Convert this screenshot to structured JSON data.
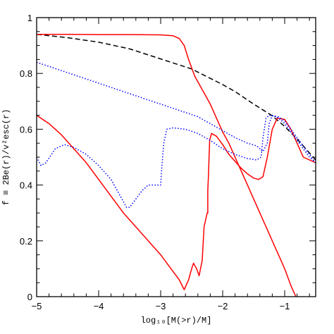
{
  "chart_data": {
    "type": "line",
    "title": "",
    "xlabel": "log₁₀[M(>r)/M]",
    "ylabel": "f ≡ 2Be(r)/v²esc(r)",
    "xlim": [
      -5,
      -0.5
    ],
    "ylim": [
      0,
      1
    ],
    "grid": false,
    "legend": "none",
    "x_ticks_major": [
      -5,
      -4,
      -3,
      -2,
      -1
    ],
    "x_tick_labels": [
      "−5",
      "−4",
      "−3",
      "−2",
      "−1"
    ],
    "y_ticks_major": [
      0,
      0.2,
      0.4,
      0.6,
      0.8,
      1
    ],
    "y_tick_labels": [
      "0",
      "0.2",
      "0.4",
      "0.6",
      "0.8",
      "1"
    ],
    "series": [
      {
        "style": "dashed",
        "color": "#000000",
        "points": [
          [
            -5,
            0.94
          ],
          [
            -4.5,
            0.928
          ],
          [
            -4,
            0.912
          ],
          [
            -3.5,
            0.888
          ],
          [
            -3,
            0.852
          ],
          [
            -2.5,
            0.816
          ],
          [
            -2,
            0.76
          ],
          [
            -1.8,
            0.735
          ],
          [
            -1.5,
            0.69
          ],
          [
            -1.2,
            0.648
          ],
          [
            -1,
            0.61
          ],
          [
            -0.8,
            0.565
          ],
          [
            -0.6,
            0.515
          ],
          [
            -0.5,
            0.49
          ]
        ]
      },
      {
        "style": "solid",
        "color": "#ff0000",
        "points": [
          [
            -5,
            0.94
          ],
          [
            -4.5,
            0.94
          ],
          [
            -4,
            0.939
          ],
          [
            -3.5,
            0.939
          ],
          [
            -3,
            0.938
          ],
          [
            -2.8,
            0.935
          ],
          [
            -2.7,
            0.925
          ],
          [
            -2.62,
            0.9
          ],
          [
            -2.55,
            0.85
          ],
          [
            -2.45,
            0.79
          ],
          [
            -2.3,
            0.73
          ],
          [
            -2.2,
            0.69
          ],
          [
            -2.1,
            0.64
          ],
          [
            -2,
            0.59
          ],
          [
            -1.9,
            0.55
          ],
          [
            -1.8,
            0.5
          ],
          [
            -1.7,
            0.45
          ],
          [
            -1.6,
            0.4
          ],
          [
            -1.5,
            0.35
          ],
          [
            -1.4,
            0.3
          ],
          [
            -1.3,
            0.25
          ],
          [
            -1.2,
            0.2
          ],
          [
            -1.1,
            0.15
          ],
          [
            -1,
            0.1
          ],
          [
            -0.9,
            0.04
          ],
          [
            -0.82,
            0
          ]
        ]
      },
      {
        "style": "solid",
        "color": "#ff0000",
        "points": [
          [
            -5,
            0.65
          ],
          [
            -4.8,
            0.62
          ],
          [
            -4.6,
            0.58
          ],
          [
            -4.4,
            0.53
          ],
          [
            -4.2,
            0.48
          ],
          [
            -4,
            0.42
          ],
          [
            -3.8,
            0.36
          ],
          [
            -3.6,
            0.3
          ],
          [
            -3.4,
            0.25
          ],
          [
            -3.2,
            0.2
          ],
          [
            -3,
            0.15
          ],
          [
            -2.8,
            0.09
          ],
          [
            -2.7,
            0.06
          ],
          [
            -2.62,
            0.025
          ],
          [
            -2.55,
            0.06
          ],
          [
            -2.5,
            0.1
          ],
          [
            -2.47,
            0.12
          ],
          [
            -2.42,
            0.1
          ],
          [
            -2.38,
            0.075
          ],
          [
            -2.33,
            0.13
          ],
          [
            -2.3,
            0.25
          ],
          [
            -2.27,
            0.28
          ],
          [
            -2.25,
            0.3
          ],
          [
            -2.24,
            0.3
          ],
          [
            -2.24,
            0.38
          ],
          [
            -2.23,
            0.43
          ],
          [
            -2.21,
            0.56
          ],
          [
            -2.18,
            0.585
          ],
          [
            -2.1,
            0.575
          ],
          [
            -2,
            0.545
          ],
          [
            -1.9,
            0.51
          ],
          [
            -1.8,
            0.485
          ],
          [
            -1.7,
            0.46
          ],
          [
            -1.6,
            0.44
          ],
          [
            -1.5,
            0.425
          ],
          [
            -1.42,
            0.42
          ],
          [
            -1.35,
            0.43
          ],
          [
            -1.28,
            0.5
          ],
          [
            -1.2,
            0.6
          ],
          [
            -1.12,
            0.64
          ],
          [
            -1,
            0.635
          ],
          [
            -0.9,
            0.6
          ],
          [
            -0.8,
            0.55
          ],
          [
            -0.7,
            0.5
          ],
          [
            -0.5,
            0.48
          ]
        ]
      },
      {
        "style": "dotted",
        "color": "#0000ff",
        "points": [
          [
            -5,
            0.84
          ],
          [
            -4.8,
            0.825
          ],
          [
            -4.6,
            0.81
          ],
          [
            -4.4,
            0.795
          ],
          [
            -4.2,
            0.78
          ],
          [
            -4,
            0.765
          ],
          [
            -3.8,
            0.75
          ],
          [
            -3.6,
            0.735
          ],
          [
            -3.4,
            0.72
          ],
          [
            -3.2,
            0.705
          ],
          [
            -3,
            0.69
          ],
          [
            -2.8,
            0.675
          ],
          [
            -2.6,
            0.66
          ],
          [
            -2.4,
            0.645
          ],
          [
            -2.2,
            0.62
          ],
          [
            -2,
            0.595
          ],
          [
            -1.8,
            0.57
          ],
          [
            -1.6,
            0.55
          ],
          [
            -1.45,
            0.54
          ],
          [
            -1.35,
            0.52
          ],
          [
            -1.28,
            0.55
          ],
          [
            -1.25,
            0.62
          ],
          [
            -1.2,
            0.65
          ],
          [
            -1.1,
            0.64
          ],
          [
            -1,
            0.62
          ],
          [
            -0.8,
            0.56
          ],
          [
            -0.6,
            0.5
          ],
          [
            -0.5,
            0.48
          ]
        ]
      },
      {
        "style": "dotted",
        "color": "#0000ff",
        "points": [
          [
            -5,
            0.5
          ],
          [
            -4.93,
            0.47
          ],
          [
            -4.85,
            0.48
          ],
          [
            -4.7,
            0.53
          ],
          [
            -4.55,
            0.545
          ],
          [
            -4.4,
            0.535
          ],
          [
            -4.2,
            0.51
          ],
          [
            -4,
            0.47
          ],
          [
            -3.8,
            0.42
          ],
          [
            -3.65,
            0.36
          ],
          [
            -3.55,
            0.32
          ],
          [
            -3.5,
            0.32
          ],
          [
            -3.4,
            0.35
          ],
          [
            -3.3,
            0.38
          ],
          [
            -3.2,
            0.4
          ],
          [
            -3.1,
            0.4
          ],
          [
            -3,
            0.4
          ],
          [
            -2.99,
            0.44
          ],
          [
            -2.95,
            0.55
          ],
          [
            -2.9,
            0.6
          ],
          [
            -2.8,
            0.605
          ],
          [
            -2.6,
            0.6
          ],
          [
            -2.4,
            0.585
          ],
          [
            -2.2,
            0.56
          ],
          [
            -2,
            0.53
          ],
          [
            -1.8,
            0.51
          ],
          [
            -1.6,
            0.495
          ],
          [
            -1.45,
            0.49
          ],
          [
            -1.38,
            0.5
          ],
          [
            -1.35,
            0.57
          ],
          [
            -1.3,
            0.64
          ],
          [
            -1.25,
            0.65
          ],
          [
            -1.1,
            0.645
          ],
          [
            -1,
            0.63
          ],
          [
            -0.8,
            0.57
          ],
          [
            -0.6,
            0.51
          ],
          [
            -0.5,
            0.48
          ]
        ]
      }
    ]
  }
}
